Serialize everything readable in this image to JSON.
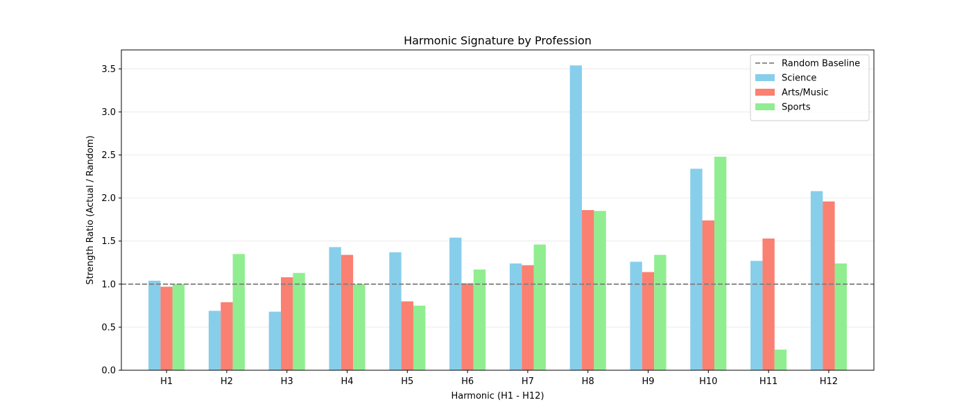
{
  "chart_data": {
    "type": "bar",
    "title": "Harmonic Signature by Profession",
    "xlabel": "Harmonic (H1 - H12)",
    "ylabel": "Strength Ratio (Actual / Random)",
    "ylim": [
      0,
      3.72
    ],
    "yticks": [
      "0.0",
      "0.5",
      "1.0",
      "1.5",
      "2.0",
      "2.5",
      "3.0",
      "3.5"
    ],
    "grid": "horizontal",
    "legend_position": "top-right",
    "categories": [
      "H1",
      "H2",
      "H3",
      "H4",
      "H5",
      "H6",
      "H7",
      "H8",
      "H9",
      "H10",
      "H11",
      "H12"
    ],
    "series": [
      {
        "name": "Science",
        "color": "#87ceeb",
        "values": [
          1.04,
          0.69,
          0.68,
          1.43,
          1.37,
          1.54,
          1.24,
          3.54,
          1.26,
          2.34,
          1.27,
          2.08
        ]
      },
      {
        "name": "Arts/Music",
        "color": "#fa8072",
        "values": [
          0.97,
          0.79,
          1.08,
          1.34,
          0.8,
          1.01,
          1.22,
          1.86,
          1.14,
          1.74,
          1.53,
          1.96
        ]
      },
      {
        "name": "Sports",
        "color": "#90ee90",
        "values": [
          1.0,
          1.35,
          1.13,
          1.0,
          0.75,
          1.17,
          1.46,
          1.85,
          1.34,
          2.48,
          0.24,
          1.24
        ]
      }
    ],
    "baseline": {
      "name": "Random Baseline",
      "value": 1.0,
      "color": "#808080"
    }
  }
}
